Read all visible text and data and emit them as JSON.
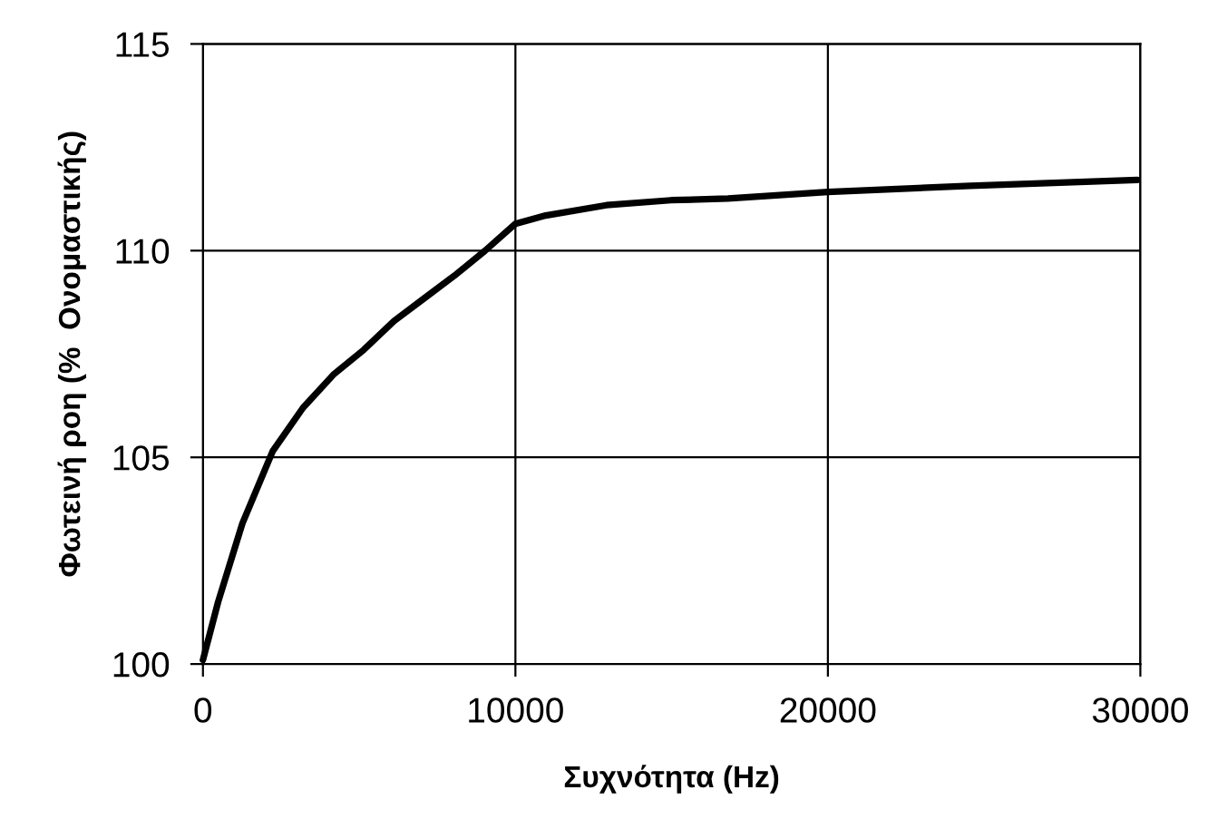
{
  "chart_data": {
    "type": "line",
    "xlabel": "Συχνότητα (Hz)",
    "ylabel": "Φωτεινή ροη (%  Ονομαστικής)",
    "series": [
      {
        "color": "#000000",
        "x": [
          0,
          485,
          1262,
          2233,
          3204,
          4175,
          5146,
          6117,
          7087,
          8058,
          9029,
          10000,
          10971,
          12913,
          14980,
          16800,
          20000,
          24560,
          29900
        ],
        "values": [
          100.1,
          101.5,
          103.4,
          105.15,
          106.2,
          107.0,
          107.6,
          108.3,
          108.85,
          109.4,
          110.0,
          110.65,
          110.85,
          111.1,
          111.22,
          111.26,
          111.42,
          111.57,
          111.71
        ]
      }
    ],
    "xlim": [
      0,
      30000
    ],
    "xticks": [
      0,
      10000,
      20000,
      30000
    ],
    "ylim": [
      100,
      115
    ],
    "yticks": [
      100,
      105,
      110,
      115
    ],
    "grid": true,
    "marker": "none",
    "line_style": "solid"
  }
}
